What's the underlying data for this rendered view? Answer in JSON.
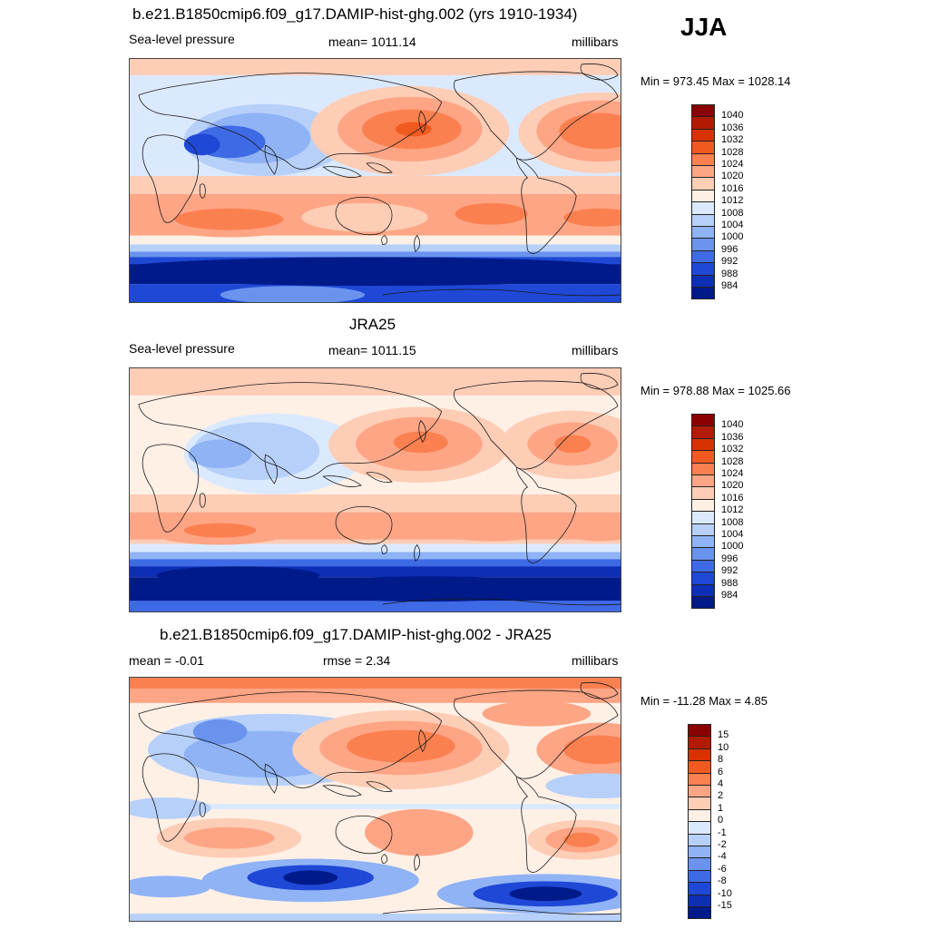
{
  "season": "JJA",
  "panels": [
    {
      "title": "b.e21.B1850cmip6.f09_g17.DAMIP-hist-ghg.002 (yrs 1910-1934)",
      "left": "Sea-level pressure",
      "center": "mean= 1011.14",
      "right": "millibars",
      "minmax": "Min = 973.45 Max = 1028.14",
      "map_name": "model-slp-map"
    },
    {
      "title": "JRA25",
      "left": "Sea-level pressure",
      "center": "mean= 1011.15",
      "right": "millibars",
      "minmax": "Min = 978.88 Max = 1025.66",
      "map_name": "obs-slp-map"
    },
    {
      "title": "b.e21.B1850cmip6.f09_g17.DAMIP-hist-ghg.002 - JRA25",
      "left": "mean =  -0.01",
      "center": "rmse =   2.34",
      "right": "millibars",
      "minmax": "Min = -11.28 Max =   4.85",
      "map_name": "diff-slp-map"
    }
  ],
  "legend_slp": {
    "labels": [
      "1040",
      "1036",
      "1032",
      "1028",
      "1024",
      "1020",
      "1016",
      "1012",
      "1008",
      "1004",
      "1000",
      "996",
      "992",
      "988",
      "984"
    ],
    "colors": [
      "#8b0000",
      "#b31b00",
      "#d83200",
      "#f05a20",
      "#fb8050",
      "#fda585",
      "#fdcdb6",
      "#fff0e6",
      "#dbe9ff",
      "#b7d0fa",
      "#8fb3f5",
      "#6a93ee",
      "#3f6ae6",
      "#1f48d6",
      "#0d2fb5",
      "#001a8a"
    ]
  },
  "legend_diff": {
    "labels": [
      "15",
      "10",
      "8",
      "6",
      "4",
      "2",
      "1",
      "0",
      "-1",
      "-2",
      "-4",
      "-6",
      "-8",
      "-10",
      "-15"
    ],
    "colors": [
      "#8b0000",
      "#b31b00",
      "#d83200",
      "#f05a20",
      "#fb8050",
      "#fda585",
      "#fdcdb6",
      "#fff0e6",
      "#dbe9ff",
      "#b7d0fa",
      "#8fb3f5",
      "#6a93ee",
      "#3f6ae6",
      "#1f48d6",
      "#0d2fb5",
      "#001a8a"
    ]
  }
}
